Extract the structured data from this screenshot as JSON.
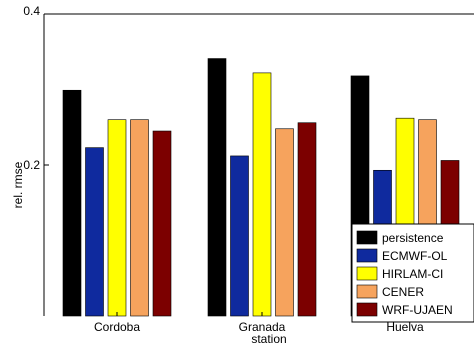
{
  "chart_data": {
    "type": "bar",
    "title": "",
    "xlabel": "station",
    "ylabel": "rel. rmse",
    "ylim": [
      0,
      0.4
    ],
    "yticks": [
      {
        "value": 0.2,
        "label": "0.2"
      },
      {
        "value": 0.4,
        "label": "0.4"
      }
    ],
    "categories": [
      "Cordoba",
      "Granada",
      "Huelva"
    ],
    "series": [
      {
        "name": "persistence",
        "color": "#000000",
        "values": [
          0.299,
          0.341,
          0.318
        ]
      },
      {
        "name": "ECMWF-OL",
        "color": "#0f2a9e",
        "values": [
          0.223,
          0.212,
          0.193
        ]
      },
      {
        "name": "HIRLAM-CI",
        "color": "#ffff00",
        "values": [
          0.26,
          0.322,
          0.262
        ]
      },
      {
        "name": "CENER",
        "color": "#f6a35d",
        "values": [
          0.26,
          0.248,
          0.26
        ]
      },
      {
        "name": "WRF-UJAEN",
        "color": "#7c0000",
        "values": [
          0.245,
          0.256,
          0.206
        ]
      }
    ],
    "grid": false,
    "legend_position": "bottom-right"
  }
}
